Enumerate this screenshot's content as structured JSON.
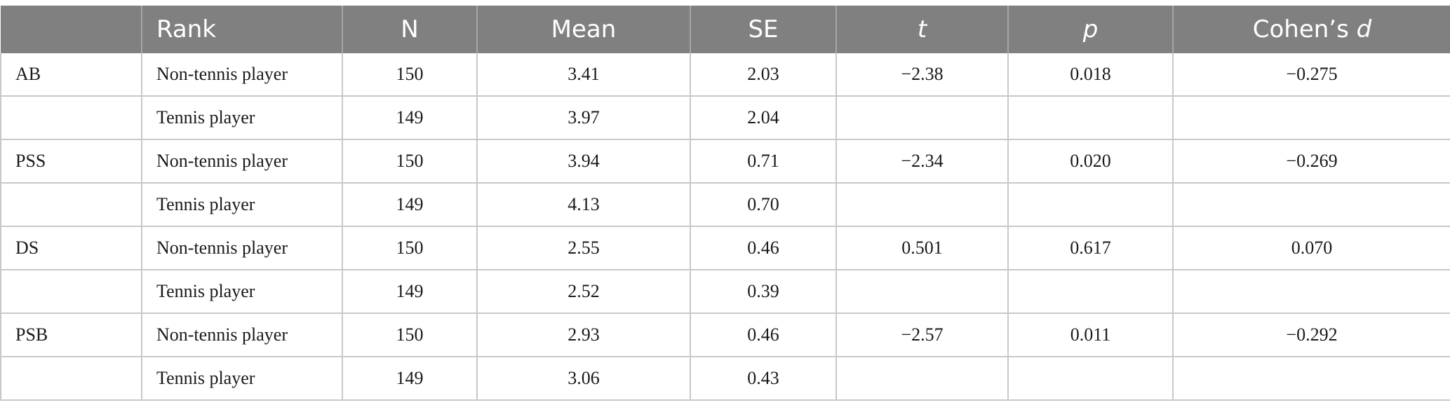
{
  "header": {
    "col0": "",
    "rank": "Rank",
    "n": "N",
    "mean": "Mean",
    "se": "SE",
    "t": "t",
    "p": "p",
    "cohens_prefix": "Cohen’s ",
    "cohens_d": "d"
  },
  "rows": [
    {
      "group": "AB",
      "rank": "Non-tennis player",
      "n": "150",
      "mean": "3.41",
      "se": "2.03",
      "t": "−2.38",
      "p": "0.018",
      "d": "−0.275"
    },
    {
      "group": "",
      "rank": "Tennis player",
      "n": "149",
      "mean": "3.97",
      "se": "2.04",
      "t": "",
      "p": "",
      "d": ""
    },
    {
      "group": "PSS",
      "rank": "Non-tennis player",
      "n": "150",
      "mean": "3.94",
      "se": "0.71",
      "t": "−2.34",
      "p": "0.020",
      "d": "−0.269"
    },
    {
      "group": "",
      "rank": "Tennis player",
      "n": "149",
      "mean": "4.13",
      "se": "0.70",
      "t": "",
      "p": "",
      "d": ""
    },
    {
      "group": "DS",
      "rank": "Non-tennis player",
      "n": "150",
      "mean": "2.55",
      "se": "0.46",
      "t": "0.501",
      "p": "0.617",
      "d": "0.070"
    },
    {
      "group": "",
      "rank": "Tennis player",
      "n": "149",
      "mean": "2.52",
      "se": "0.39",
      "t": "",
      "p": "",
      "d": ""
    },
    {
      "group": "PSB",
      "rank": "Non-tennis player",
      "n": "150",
      "mean": "2.93",
      "se": "0.46",
      "t": "−2.57",
      "p": "0.011",
      "d": "−0.292"
    },
    {
      "group": "",
      "rank": "Tennis player",
      "n": "149",
      "mean": "3.06",
      "se": "0.43",
      "t": "",
      "p": "",
      "d": ""
    }
  ]
}
